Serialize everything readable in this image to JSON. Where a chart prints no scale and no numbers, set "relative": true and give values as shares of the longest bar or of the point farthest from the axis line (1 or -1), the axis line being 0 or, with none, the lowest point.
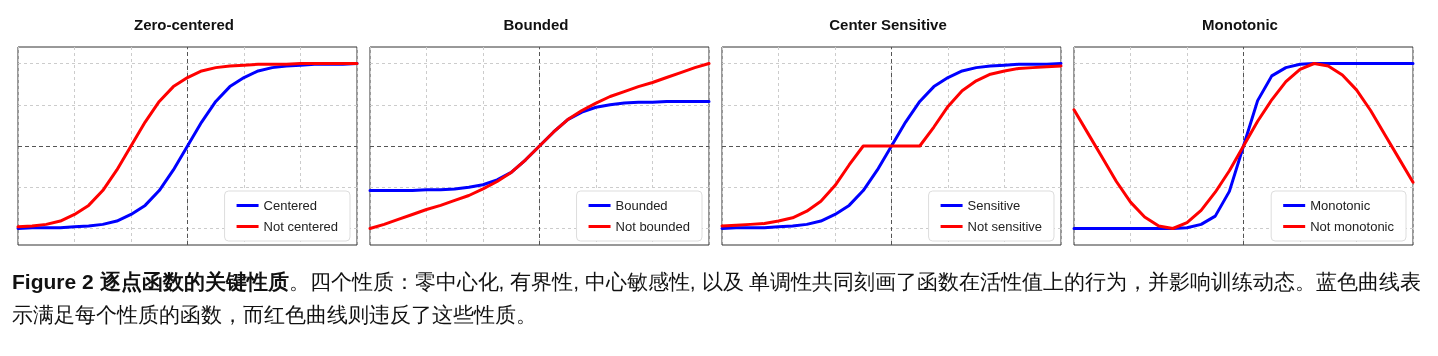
{
  "chart_data": [
    {
      "type": "line",
      "title": "Zero-centered",
      "relative": true,
      "grid": true,
      "legend": "bottom right",
      "marker": "none",
      "line_style": "solid",
      "categories": [
        null,
        null,
        null,
        null,
        null,
        null,
        null,
        null,
        null,
        null,
        null,
        null,
        null,
        null,
        null,
        null,
        null,
        null,
        null,
        null,
        null,
        null,
        null,
        null,
        null
      ],
      "ref_lines": [
        {
          "axis": "y",
          "value": 0,
          "color": "#555555",
          "line_style": "dashed"
        }
      ],
      "series": [
        {
          "name": "Centered",
          "color": "#0000ff",
          "values": [
            -1.0,
            -0.99,
            -0.99,
            -0.99,
            -0.98,
            -0.97,
            -0.95,
            -0.91,
            -0.83,
            -0.72,
            -0.54,
            -0.29,
            0,
            0.29,
            0.54,
            0.72,
            0.83,
            0.91,
            0.95,
            0.97,
            0.98,
            0.99,
            0.99,
            0.99,
            1.0
          ]
        },
        {
          "name": "Not centered",
          "color": "#ff0000",
          "values": [
            -0.98,
            -0.97,
            -0.95,
            -0.91,
            -0.83,
            -0.72,
            -0.54,
            -0.29,
            0,
            0.29,
            0.54,
            0.72,
            0.83,
            0.91,
            0.95,
            0.97,
            0.98,
            0.99,
            0.99,
            0.99,
            1.0,
            1.0,
            1.0,
            1.0,
            1.0
          ]
        }
      ]
    },
    {
      "type": "line",
      "title": "Bounded",
      "relative": true,
      "grid": true,
      "legend": "bottom right",
      "marker": "none",
      "line_style": "solid",
      "categories": [
        null,
        null,
        null,
        null,
        null,
        null,
        null,
        null,
        null,
        null,
        null,
        null,
        null,
        null,
        null,
        null,
        null,
        null,
        null,
        null,
        null,
        null,
        null,
        null,
        null
      ],
      "ref_lines": [
        {
          "axis": "y",
          "value": 0,
          "color": "#555555",
          "line_style": "dashed"
        }
      ],
      "series": [
        {
          "name": "Bounded",
          "color": "#0000ff",
          "values": [
            -0.54,
            -0.54,
            -0.54,
            -0.54,
            -0.53,
            -0.53,
            -0.52,
            -0.5,
            -0.47,
            -0.41,
            -0.32,
            -0.17,
            0,
            0.17,
            0.32,
            0.41,
            0.47,
            0.5,
            0.52,
            0.53,
            0.53,
            0.54,
            0.54,
            0.54,
            0.54
          ]
        },
        {
          "name": "Not bounded",
          "color": "#ff0000",
          "values": [
            -1.0,
            -0.95,
            -0.89,
            -0.83,
            -0.77,
            -0.72,
            -0.66,
            -0.6,
            -0.52,
            -0.43,
            -0.32,
            -0.17,
            0,
            0.17,
            0.32,
            0.43,
            0.52,
            0.6,
            0.66,
            0.72,
            0.77,
            0.83,
            0.89,
            0.95,
            1.0
          ]
        }
      ]
    },
    {
      "type": "line",
      "title": "Center Sensitive",
      "relative": true,
      "grid": true,
      "legend": "bottom right",
      "marker": "none",
      "line_style": "solid",
      "categories": [
        null,
        null,
        null,
        null,
        null,
        null,
        null,
        null,
        null,
        null,
        null,
        null,
        null,
        null,
        null,
        null,
        null,
        null,
        null,
        null,
        null,
        null,
        null,
        null,
        null
      ],
      "ref_lines": [
        {
          "axis": "y",
          "value": 0,
          "color": "#555555",
          "line_style": "dashed"
        }
      ],
      "series": [
        {
          "name": "Sensitive",
          "color": "#0000ff",
          "values": [
            -1.0,
            -0.99,
            -0.99,
            -0.99,
            -0.98,
            -0.97,
            -0.95,
            -0.91,
            -0.83,
            -0.72,
            -0.54,
            -0.29,
            0,
            0.29,
            0.54,
            0.72,
            0.83,
            0.91,
            0.95,
            0.97,
            0.98,
            0.99,
            0.99,
            0.99,
            1.0
          ]
        },
        {
          "name": "Not sensitive",
          "color": "#ff0000",
          "values": [
            -0.97,
            -0.96,
            -0.95,
            -0.94,
            -0.91,
            -0.87,
            -0.79,
            -0.67,
            -0.48,
            -0.23,
            0,
            0,
            0,
            0,
            0,
            0.23,
            0.48,
            0.67,
            0.79,
            0.87,
            0.91,
            0.94,
            0.95,
            0.96,
            0.97
          ]
        }
      ]
    },
    {
      "type": "line",
      "title": "Monotonic",
      "relative": true,
      "grid": true,
      "legend": "bottom right",
      "marker": "none",
      "line_style": "solid",
      "categories": [
        null,
        null,
        null,
        null,
        null,
        null,
        null,
        null,
        null,
        null,
        null,
        null,
        null,
        null,
        null,
        null,
        null,
        null,
        null,
        null,
        null,
        null,
        null,
        null,
        null
      ],
      "ref_lines": [
        {
          "axis": "y",
          "value": 0,
          "color": "#555555",
          "line_style": "dashed"
        }
      ],
      "series": [
        {
          "name": "Monotonic",
          "color": "#0000ff",
          "values": [
            -1.0,
            -1.0,
            -1.0,
            -1.0,
            -1.0,
            -1.0,
            -1.0,
            -1.0,
            -0.99,
            -0.95,
            -0.85,
            -0.55,
            0,
            0.55,
            0.85,
            0.95,
            0.99,
            1.0,
            1.0,
            1.0,
            1.0,
            1.0,
            1.0,
            1.0,
            1.0
          ]
        },
        {
          "name": "Not monotonic",
          "color": "#ff0000",
          "values": [
            0.44,
            0.15,
            -0.14,
            -0.43,
            -0.68,
            -0.86,
            -0.97,
            -1.0,
            -0.93,
            -0.78,
            -0.56,
            -0.3,
            0,
            0.3,
            0.56,
            0.78,
            0.93,
            1.0,
            0.97,
            0.86,
            0.68,
            0.43,
            0.14,
            -0.15,
            -0.44
          ]
        }
      ]
    },
    {
      "type": "other",
      "annotations": [
        "Figure 2 逐点函数的关键性质",
        "。四个性质：零中心化, 有界性, 中心敏感性, 以及 单调性共同刻画了函数在活性值上的行为，并影响训练动态。蓝色曲线表示满足每个性质的函数，而红色曲线则违反了这些性质。"
      ]
    }
  ]
}
